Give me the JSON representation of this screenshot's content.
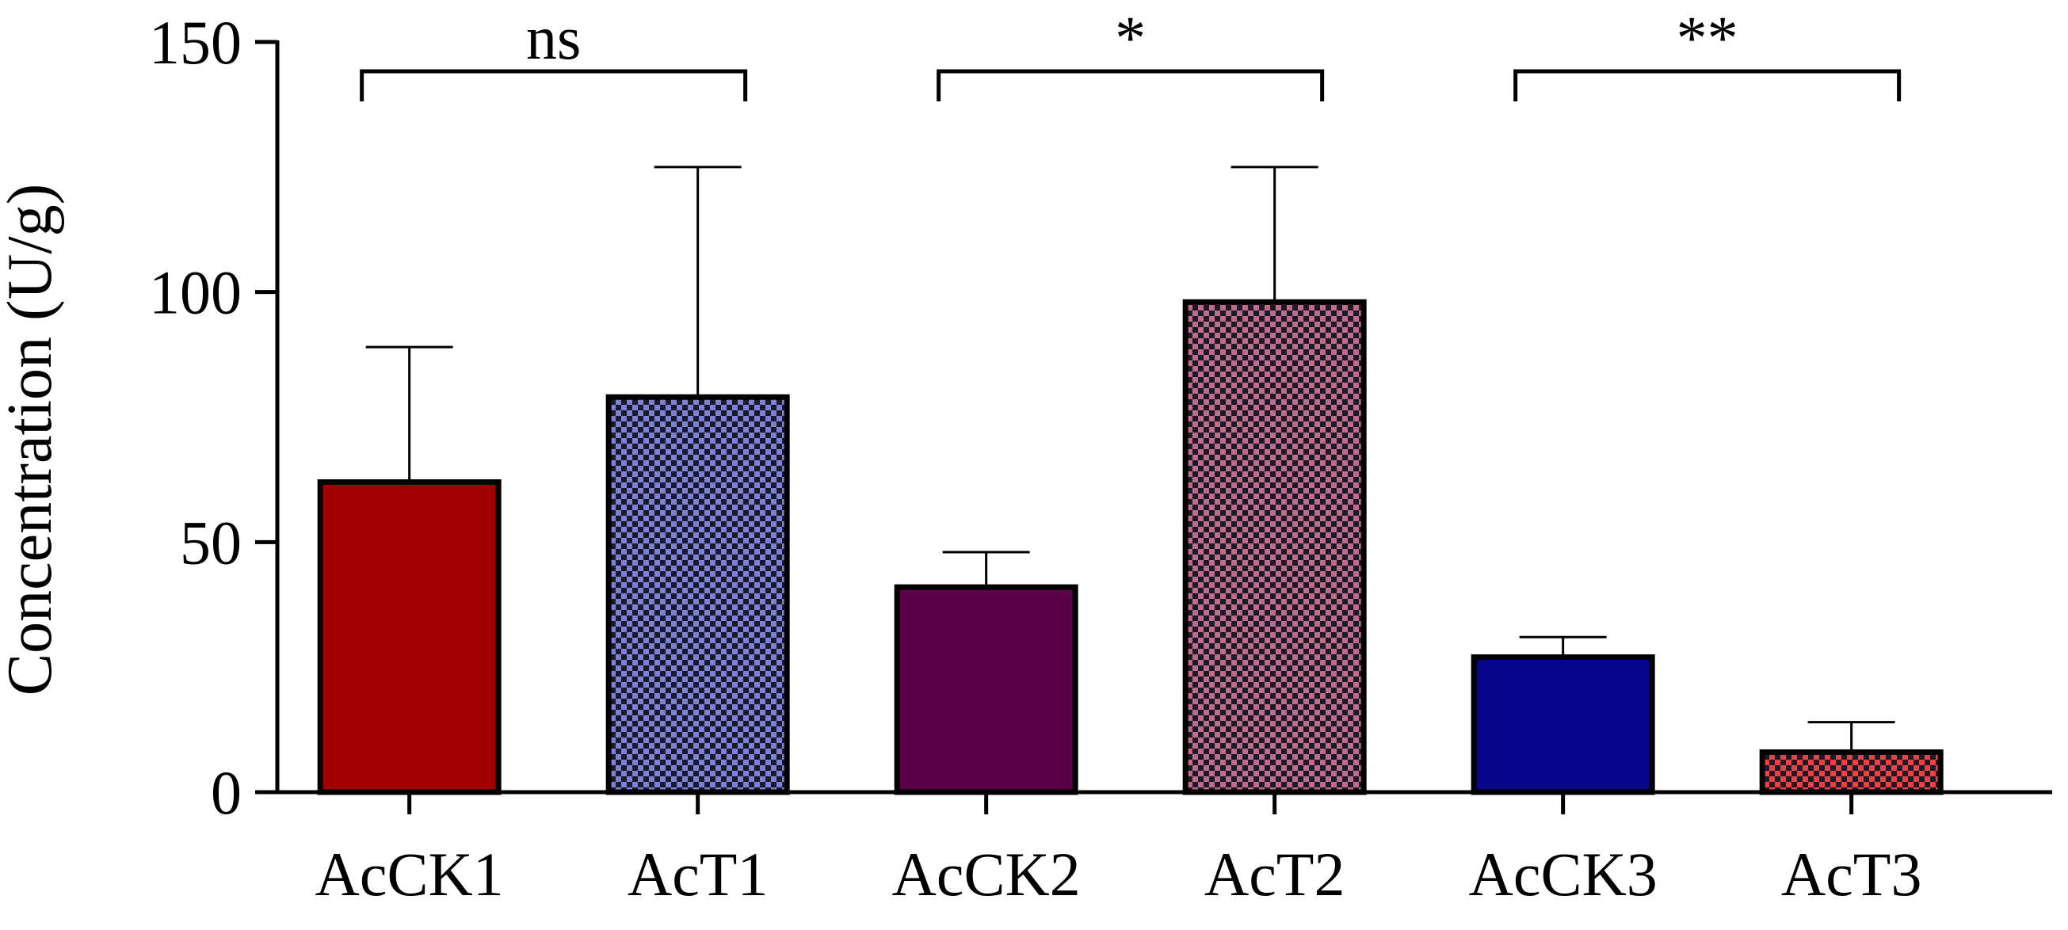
{
  "chart_data": {
    "type": "bar",
    "title": "",
    "xlabel": "",
    "ylabel": "Concentration (U/g)",
    "ylim": [
      0,
      150
    ],
    "yticks": [
      0,
      50,
      100,
      150
    ],
    "grid": false,
    "categories": [
      "AcCK1",
      "AcT1",
      "AcCK2",
      "AcT2",
      "AcCK3",
      "AcT3"
    ],
    "values": [
      62,
      79,
      41,
      98,
      27,
      8
    ],
    "errors": [
      27,
      46,
      7,
      27,
      4,
      6
    ],
    "bars": [
      {
        "color": "#a00000",
        "pattern": "solid"
      },
      {
        "color": "#7b82d8",
        "pattern": "checker"
      },
      {
        "color": "#5c0048",
        "pattern": "solid"
      },
      {
        "color": "#c06c88",
        "pattern": "checker"
      },
      {
        "color": "#06068a",
        "pattern": "solid"
      },
      {
        "color": "#f04040",
        "pattern": "checker"
      }
    ],
    "annotations": [
      {
        "label": "ns",
        "from": 0,
        "to": 1
      },
      {
        "label": "*",
        "from": 2,
        "to": 3
      },
      {
        "label": "**",
        "from": 4,
        "to": 5
      }
    ]
  }
}
